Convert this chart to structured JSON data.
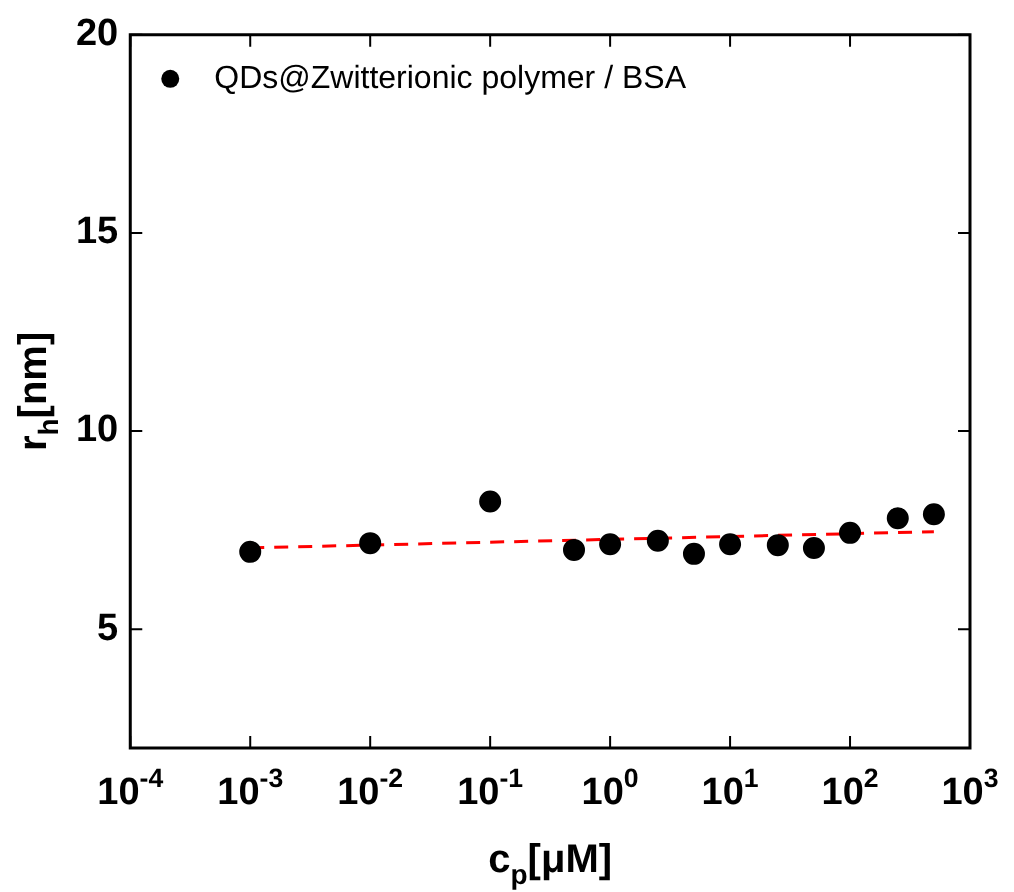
{
  "chart_data": {
    "type": "scatter",
    "xlabel": "c$_{p}$[μM]",
    "ylabel": "r$_{h}$[nm]",
    "log": "x",
    "xlim": [
      0.0001,
      1000
    ],
    "ylim": [
      2,
      20
    ],
    "xticks": [
      {
        "value": 0.0001,
        "label": "10$^{-4}$"
      },
      {
        "value": 0.001,
        "label": "10$^{-3}$"
      },
      {
        "value": 0.01,
        "label": "10$^{-2}$"
      },
      {
        "value": 0.1,
        "label": "10$^{-1}$"
      },
      {
        "value": 1,
        "label": "10$^{0}$"
      },
      {
        "value": 10,
        "label": "10$^{1}$"
      },
      {
        "value": 100,
        "label": "10$^{2}$"
      },
      {
        "value": 1000,
        "label": "10$^{3}$"
      }
    ],
    "yticks": [
      5,
      10,
      15,
      20
    ],
    "grid": false,
    "legend": "top left",
    "marker": "circle",
    "series": [
      {
        "name": "QDs@Zwitterionic polymer / BSA",
        "color": "#000000",
        "x": [
          0.001,
          0.01,
          0.1,
          0.5,
          1,
          2.5,
          5,
          10,
          25,
          50,
          100,
          250,
          500
        ],
        "values": [
          6.95,
          7.17,
          8.22,
          7.0,
          7.14,
          7.23,
          6.9,
          7.14,
          7.12,
          7.05,
          7.43,
          7.8,
          7.9
        ]
      },
      {
        "type": "line",
        "color": "#ff0000",
        "line_style": "dashed",
        "marker": "none",
        "x": [
          0.001,
          500
        ],
        "values": [
          7.05,
          7.46
        ]
      }
    ]
  }
}
